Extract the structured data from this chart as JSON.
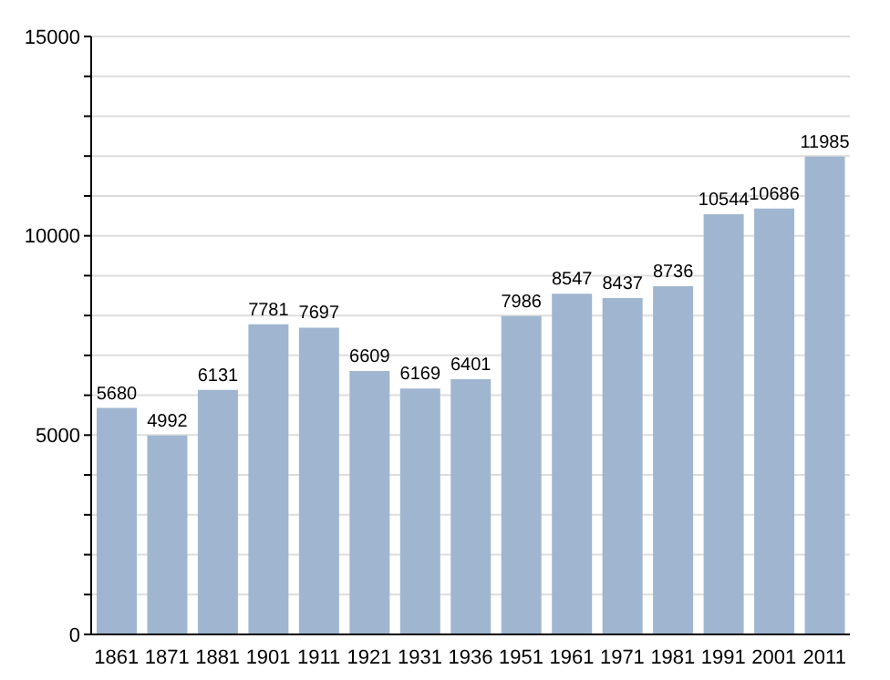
{
  "chart_data": {
    "type": "bar",
    "categories": [
      "1861",
      "1871",
      "1881",
      "1901",
      "1911",
      "1921",
      "1931",
      "1936",
      "1951",
      "1961",
      "1971",
      "1981",
      "1991",
      "2001",
      "2011"
    ],
    "values": [
      5680,
      4992,
      6131,
      7781,
      7697,
      6609,
      6169,
      6401,
      7986,
      8547,
      8437,
      8736,
      10544,
      10686,
      11985
    ],
    "color": "#a0b6d0",
    "ylim": [
      0,
      15000
    ],
    "yticks": [
      0,
      {
        "value": 1000,
        "label": null
      },
      {
        "value": 2000,
        "label": null
      },
      {
        "value": 3000,
        "label": null
      },
      {
        "value": 4000,
        "label": null
      },
      5000,
      {
        "value": 6000,
        "label": null
      },
      {
        "value": 7000,
        "label": null
      },
      {
        "value": 8000,
        "label": null
      },
      {
        "value": 9000,
        "label": null
      },
      10000,
      {
        "value": 11000,
        "label": null
      },
      {
        "value": 12000,
        "label": null
      },
      {
        "value": 13000,
        "label": null
      },
      {
        "value": 14000,
        "label": null
      },
      15000
    ],
    "grid": "y",
    "data_labels": true
  }
}
